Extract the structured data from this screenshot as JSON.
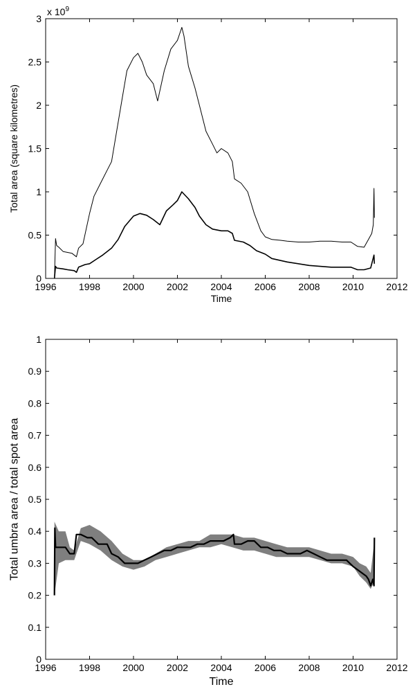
{
  "chart_data": [
    {
      "type": "line",
      "xlabel": "Time",
      "ylabel": "Total area (square kilometres)",
      "y_multiplier_label": "x 10",
      "y_multiplier_exponent": "9",
      "xlim": [
        1996,
        2012
      ],
      "ylim": [
        0,
        3
      ],
      "xticks": [
        1996,
        1998,
        2000,
        2002,
        2004,
        2006,
        2008,
        2010,
        2012
      ],
      "yticks": [
        0,
        0.5,
        1,
        1.5,
        2,
        2.5,
        3
      ],
      "ytick_labels": [
        "0",
        "0.5",
        "1",
        "1.5",
        "2",
        "2.5",
        "3"
      ],
      "grid": false,
      "series": [
        {
          "color": "#000000",
          "x": [
            1996.4,
            1996.45,
            1996.5,
            1996.6,
            1996.8,
            1997.0,
            1997.2,
            1997.4,
            1997.5,
            1997.7,
            1998.0,
            1998.2,
            1998.5,
            1998.8,
            1999.0,
            1999.2,
            1999.5,
            1999.7,
            2000.0,
            2000.2,
            2000.4,
            2000.6,
            2000.9,
            2001.1,
            2001.4,
            2001.7,
            2002.0,
            2002.2,
            2002.3,
            2002.5,
            2002.8,
            2003.0,
            2003.3,
            2003.6,
            2003.8,
            2004.0,
            2004.3,
            2004.5,
            2004.6,
            2004.9,
            2005.2,
            2005.5,
            2005.8,
            2006.0,
            2006.3,
            2006.7,
            2007.0,
            2007.5,
            2008.0,
            2008.5,
            2009.0,
            2009.5,
            2009.9,
            2010.2,
            2010.5,
            2010.7,
            2010.85,
            2010.92,
            2010.95,
            2010.97
          ],
          "y": [
            0.0,
            0.46,
            0.38,
            0.36,
            0.31,
            0.3,
            0.29,
            0.25,
            0.35,
            0.4,
            0.75,
            0.95,
            1.1,
            1.25,
            1.35,
            1.65,
            2.1,
            2.4,
            2.55,
            2.6,
            2.5,
            2.35,
            2.25,
            2.05,
            2.4,
            2.65,
            2.75,
            2.9,
            2.8,
            2.45,
            2.2,
            2.0,
            1.7,
            1.55,
            1.45,
            1.5,
            1.45,
            1.35,
            1.15,
            1.1,
            1.0,
            0.75,
            0.55,
            0.48,
            0.45,
            0.44,
            0.43,
            0.42,
            0.42,
            0.43,
            0.43,
            0.42,
            0.42,
            0.37,
            0.36,
            0.45,
            0.52,
            0.62,
            1.04,
            0.7
          ]
        },
        {
          "color": "#000000",
          "x": [
            1996.4,
            1996.45,
            1996.5,
            1996.8,
            1997.0,
            1997.3,
            1997.4,
            1997.5,
            1997.8,
            1998.0,
            1998.3,
            1998.6,
            1999.0,
            1999.3,
            1999.6,
            2000.0,
            2000.3,
            2000.6,
            2000.9,
            2001.2,
            2001.5,
            2001.8,
            2002.0,
            2002.2,
            2002.5,
            2002.8,
            2003.0,
            2003.3,
            2003.6,
            2004.0,
            2004.3,
            2004.5,
            2004.6,
            2005.0,
            2005.3,
            2005.6,
            2006.0,
            2006.3,
            2007.0,
            2008.0,
            2009.0,
            2009.9,
            2010.2,
            2010.5,
            2010.8,
            2010.95,
            2010.97
          ],
          "y": [
            0.0,
            0.14,
            0.12,
            0.11,
            0.1,
            0.09,
            0.07,
            0.13,
            0.16,
            0.17,
            0.22,
            0.27,
            0.35,
            0.45,
            0.6,
            0.72,
            0.75,
            0.73,
            0.68,
            0.62,
            0.78,
            0.85,
            0.9,
            1.0,
            0.92,
            0.82,
            0.72,
            0.62,
            0.57,
            0.55,
            0.55,
            0.52,
            0.44,
            0.42,
            0.38,
            0.32,
            0.28,
            0.23,
            0.19,
            0.15,
            0.13,
            0.13,
            0.1,
            0.1,
            0.12,
            0.27,
            0.17
          ]
        }
      ]
    },
    {
      "type": "line",
      "xlabel": "Time",
      "ylabel": "Total umbra area / total spot area",
      "xlim": [
        1996,
        2012
      ],
      "ylim": [
        0,
        1
      ],
      "xticks": [
        1996,
        1998,
        2000,
        2002,
        2004,
        2006,
        2008,
        2010,
        2012
      ],
      "yticks": [
        0,
        0.1,
        0.2,
        0.3,
        0.4,
        0.5,
        0.6,
        0.7,
        0.8,
        0.9,
        1
      ],
      "ytick_labels": [
        "0",
        "0.1",
        "0.2",
        "0.3",
        "0.4",
        "0.5",
        "0.6",
        "0.7",
        "0.8",
        "0.9",
        "1"
      ],
      "grid": false,
      "band": {
        "color": "#7f7f7f",
        "x": [
          1996.4,
          1996.6,
          1996.9,
          1997.1,
          1997.3,
          1997.6,
          1998.0,
          1998.5,
          1999.0,
          1999.5,
          2000.0,
          2000.5,
          2001.0,
          2001.5,
          2002.0,
          2002.5,
          2003.0,
          2003.5,
          2004.0,
          2004.5,
          2005.0,
          2005.5,
          2006.0,
          2006.5,
          2007.0,
          2007.5,
          2008.0,
          2008.5,
          2009.0,
          2009.5,
          2010.0,
          2010.3,
          2010.6,
          2010.8,
          2010.95
        ],
        "upper": [
          0.43,
          0.4,
          0.4,
          0.35,
          0.34,
          0.41,
          0.42,
          0.4,
          0.37,
          0.33,
          0.31,
          0.31,
          0.33,
          0.35,
          0.36,
          0.37,
          0.37,
          0.39,
          0.39,
          0.39,
          0.38,
          0.38,
          0.37,
          0.36,
          0.35,
          0.35,
          0.35,
          0.34,
          0.33,
          0.33,
          0.32,
          0.3,
          0.29,
          0.27,
          0.36
        ],
        "lower": [
          0.2,
          0.3,
          0.31,
          0.31,
          0.31,
          0.37,
          0.36,
          0.34,
          0.31,
          0.29,
          0.28,
          0.29,
          0.31,
          0.32,
          0.33,
          0.34,
          0.35,
          0.35,
          0.36,
          0.35,
          0.34,
          0.34,
          0.33,
          0.32,
          0.32,
          0.32,
          0.32,
          0.31,
          0.3,
          0.3,
          0.29,
          0.26,
          0.24,
          0.22,
          0.24
        ]
      },
      "series": [
        {
          "color": "#000000",
          "x": [
            1996.4,
            1996.42,
            1996.45,
            1996.5,
            1996.7,
            1996.9,
            1997.1,
            1997.3,
            1997.4,
            1997.6,
            1997.9,
            1998.1,
            1998.4,
            1998.8,
            1999.0,
            1999.3,
            1999.6,
            1999.9,
            2000.2,
            2000.5,
            2000.8,
            2001.1,
            2001.4,
            2001.7,
            2002.0,
            2002.3,
            2002.6,
            2002.9,
            2003.2,
            2003.5,
            2003.8,
            2004.1,
            2004.4,
            2004.55,
            2004.6,
            2004.9,
            2005.2,
            2005.5,
            2005.8,
            2006.1,
            2006.4,
            2006.7,
            2007.0,
            2007.3,
            2007.6,
            2007.9,
            2008.2,
            2008.5,
            2008.8,
            2009.1,
            2009.4,
            2009.7,
            2010.0,
            2010.2,
            2010.4,
            2010.6,
            2010.7,
            2010.8,
            2010.9,
            2010.95,
            2010.97
          ],
          "y": [
            0.2,
            0.41,
            0.35,
            0.35,
            0.35,
            0.35,
            0.33,
            0.33,
            0.39,
            0.39,
            0.38,
            0.38,
            0.36,
            0.36,
            0.33,
            0.32,
            0.3,
            0.3,
            0.3,
            0.31,
            0.32,
            0.33,
            0.34,
            0.34,
            0.35,
            0.35,
            0.35,
            0.36,
            0.36,
            0.37,
            0.37,
            0.37,
            0.38,
            0.39,
            0.36,
            0.36,
            0.37,
            0.37,
            0.35,
            0.35,
            0.34,
            0.34,
            0.33,
            0.33,
            0.33,
            0.34,
            0.33,
            0.32,
            0.31,
            0.31,
            0.31,
            0.31,
            0.29,
            0.28,
            0.27,
            0.26,
            0.25,
            0.23,
            0.25,
            0.23,
            0.38
          ]
        }
      ]
    }
  ]
}
